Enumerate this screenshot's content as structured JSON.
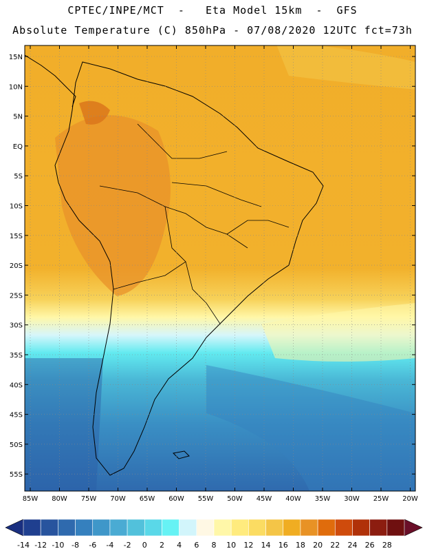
{
  "header": {
    "title_line1": "CPTEC/INPE/MCT  -   Eta Model 15km  -  GFS",
    "title_line2": "Absolute Temperature (C) 850hPa - 07/08/2020 12UTC fct=73h"
  },
  "map": {
    "lat_labels": [
      "15N",
      "10N",
      "5N",
      "EQ",
      "5S",
      "10S",
      "15S",
      "20S",
      "25S",
      "30S",
      "35S",
      "40S",
      "45S",
      "50S",
      "55S"
    ],
    "lon_labels": [
      "85W",
      "80W",
      "75W",
      "70W",
      "65W",
      "60W",
      "55W",
      "50W",
      "45W",
      "40W",
      "35W",
      "30W",
      "25W",
      "20W"
    ]
  },
  "colorbar": {
    "labels": [
      "-14",
      "-12",
      "-10",
      "-8",
      "-6",
      "-4",
      "-2",
      "0",
      "2",
      "4",
      "6",
      "8",
      "10",
      "12",
      "14",
      "16",
      "18",
      "20",
      "22",
      "24",
      "26",
      "28"
    ],
    "colors": [
      "#1f3f8f",
      "#28549e",
      "#2f6aae",
      "#3580be",
      "#3f97c9",
      "#4aabd3",
      "#52c1db",
      "#5ad8e8",
      "#66f2f4",
      "#d2f5fb",
      "#fff8e4",
      "#fff7a8",
      "#ffeb7e",
      "#fbdc62",
      "#f4c547",
      "#f0ad22",
      "#e89225",
      "#e06c0c",
      "#cf4b0c",
      "#b03109",
      "#8c1d10",
      "#6f1010"
    ],
    "under_color": "#1a2f80",
    "over_color": "#6a0f28"
  }
}
